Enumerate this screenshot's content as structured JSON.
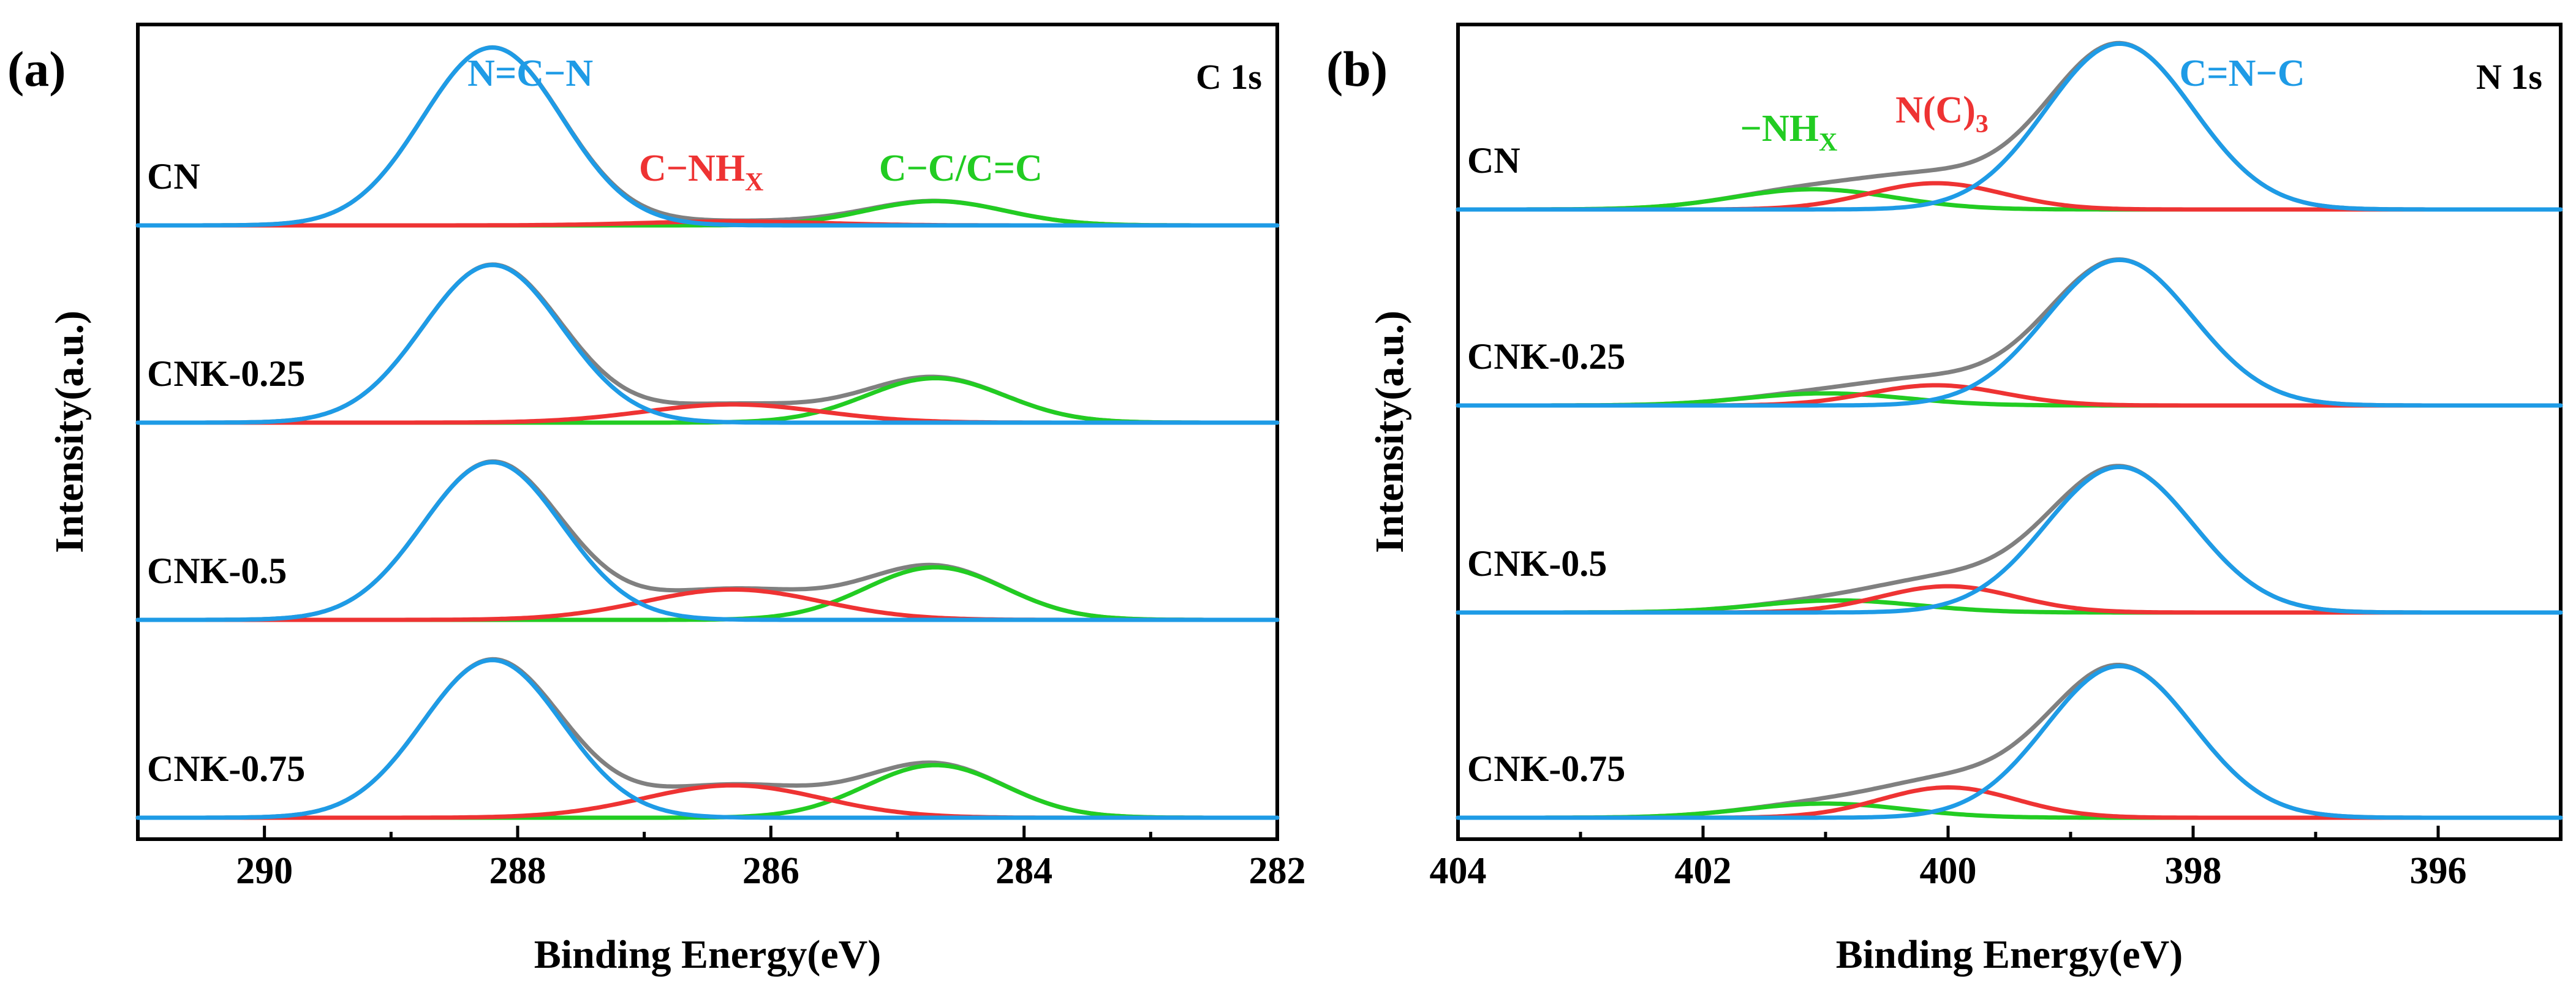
{
  "colors": {
    "envelope": "#808080",
    "blue": "#1E9BE6",
    "red": "#EE3333",
    "green": "#22CC22"
  },
  "chart_data": [
    {
      "type": "line",
      "panel": "(a)",
      "core_level": "C 1s",
      "xlabel": "Binding Energy(eV)",
      "ylabel": "Intensity(a.u.)",
      "xlim": [
        291,
        282
      ],
      "xticks": [
        290,
        288,
        286,
        284,
        282
      ],
      "components": [
        {
          "key": "blue",
          "label": "N=C−N",
          "label_main": "N=C−N",
          "label_sub": "",
          "label_anchor_x": 287.9
        },
        {
          "key": "red",
          "label": "C−NHX",
          "label_main": "C−NH",
          "label_sub": "X",
          "label_anchor_x": 286.55
        },
        {
          "key": "green",
          "label": "C−C/C=C",
          "label_main": "C−C/C=C",
          "label_sub": "",
          "label_anchor_x": 284.5
        }
      ],
      "samples": [
        {
          "name": "CN",
          "peaks": [
            {
              "component": "blue",
              "center": 288.2,
              "sigma": 0.55,
              "height": 0.88
            },
            {
              "component": "red",
              "center": 286.3,
              "sigma": 0.7,
              "height": 0.02
            },
            {
              "component": "green",
              "center": 284.7,
              "sigma": 0.55,
              "height": 0.12
            }
          ]
        },
        {
          "name": "CNK-0.25",
          "peaks": [
            {
              "component": "blue",
              "center": 288.2,
              "sigma": 0.55,
              "height": 0.78
            },
            {
              "component": "red",
              "center": 286.3,
              "sigma": 0.7,
              "height": 0.09
            },
            {
              "component": "green",
              "center": 284.7,
              "sigma": 0.55,
              "height": 0.22
            }
          ]
        },
        {
          "name": "CNK-0.5",
          "peaks": [
            {
              "component": "blue",
              "center": 288.2,
              "sigma": 0.55,
              "height": 0.78
            },
            {
              "component": "red",
              "center": 286.3,
              "sigma": 0.7,
              "height": 0.15
            },
            {
              "component": "green",
              "center": 284.7,
              "sigma": 0.55,
              "height": 0.26
            }
          ]
        },
        {
          "name": "CNK-0.75",
          "peaks": [
            {
              "component": "blue",
              "center": 288.2,
              "sigma": 0.55,
              "height": 0.78
            },
            {
              "component": "red",
              "center": 286.3,
              "sigma": 0.7,
              "height": 0.16
            },
            {
              "component": "green",
              "center": 284.7,
              "sigma": 0.55,
              "height": 0.26
            }
          ]
        }
      ]
    },
    {
      "type": "line",
      "panel": "(b)",
      "core_level": "N 1s",
      "xlabel": "Binding Energy(eV)",
      "ylabel": "Intensity(a.u.)",
      "xlim": [
        404,
        395
      ],
      "xticks": [
        404,
        402,
        400,
        398,
        396
      ],
      "components": [
        {
          "key": "blue",
          "label": "C=N−C",
          "label_main": "C=N−C",
          "label_sub": "",
          "label_anchor_x": 397.6
        },
        {
          "key": "red",
          "label": "N(C)3",
          "label_main": "N(C)",
          "label_sub": "3",
          "label_anchor_x": 400.05
        },
        {
          "key": "green",
          "label": "−NHX",
          "label_main": "−NH",
          "label_sub": "X",
          "label_anchor_x": 401.3
        }
      ],
      "samples": [
        {
          "name": "CN",
          "peaks": [
            {
              "component": "blue",
              "center": 398.6,
              "sigma": 0.6,
              "height": 0.82
            },
            {
              "component": "red",
              "center": 400.1,
              "sigma": 0.55,
              "height": 0.13
            },
            {
              "component": "green",
              "center": 401.1,
              "sigma": 0.65,
              "height": 0.1
            }
          ]
        },
        {
          "name": "CNK-0.25",
          "peaks": [
            {
              "component": "blue",
              "center": 398.6,
              "sigma": 0.6,
              "height": 0.72
            },
            {
              "component": "red",
              "center": 400.1,
              "sigma": 0.55,
              "height": 0.1
            },
            {
              "component": "green",
              "center": 401.0,
              "sigma": 0.65,
              "height": 0.06
            }
          ]
        },
        {
          "name": "CNK-0.5",
          "peaks": [
            {
              "component": "blue",
              "center": 398.6,
              "sigma": 0.6,
              "height": 0.72
            },
            {
              "component": "red",
              "center": 400.0,
              "sigma": 0.55,
              "height": 0.13
            },
            {
              "component": "green",
              "center": 400.9,
              "sigma": 0.65,
              "height": 0.06
            }
          ]
        },
        {
          "name": "CNK-0.75",
          "peaks": [
            {
              "component": "blue",
              "center": 398.6,
              "sigma": 0.6,
              "height": 0.75
            },
            {
              "component": "red",
              "center": 400.0,
              "sigma": 0.55,
              "height": 0.15
            },
            {
              "component": "green",
              "center": 401.0,
              "sigma": 0.65,
              "height": 0.07
            }
          ]
        }
      ]
    }
  ]
}
